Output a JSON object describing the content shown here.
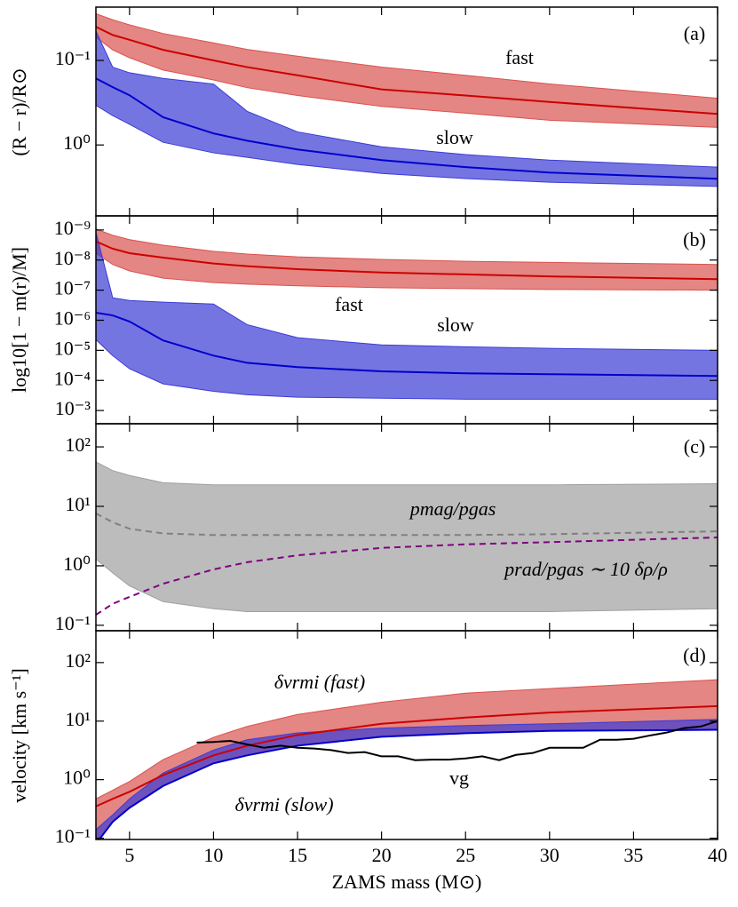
{
  "chart_data": [
    {
      "type": "line",
      "label": "(a)",
      "ylabel": "(R − r)/R⊙",
      "log_y": true,
      "xlim": [
        3,
        40
      ],
      "xticks": [
        5,
        10,
        15,
        20,
        25,
        30,
        35,
        40
      ],
      "ylim": [
        6.9,
        0.0234
      ],
      "yticks": [
        {
          "value": 0.1,
          "label": "10⁻¹"
        },
        {
          "value": 1,
          "label": "10⁰"
        }
      ],
      "x": [
        3,
        4,
        5,
        7,
        10,
        12,
        15,
        20,
        25,
        30,
        40
      ],
      "series": [
        {
          "name": "fast",
          "color": "#cc0000",
          "band_color": "#d9534f",
          "values": [
            0.04,
            0.05,
            0.057,
            0.075,
            0.1,
            0.12,
            0.15,
            0.22,
            0.26,
            0.31,
            0.43
          ],
          "lower": [
            0.028,
            0.033,
            0.038,
            0.048,
            0.062,
            0.074,
            0.089,
            0.12,
            0.15,
            0.19,
            0.28
          ],
          "upper": [
            0.053,
            0.075,
            0.093,
            0.13,
            0.17,
            0.21,
            0.26,
            0.35,
            0.42,
            0.51,
            0.62
          ]
        },
        {
          "name": "slow",
          "color": "#0000cc",
          "band_color": "#3b3bd6",
          "values": [
            0.163,
            0.207,
            0.258,
            0.47,
            0.73,
            0.89,
            1.13,
            1.51,
            1.83,
            2.12,
            2.51
          ],
          "lower": [
            0.045,
            0.12,
            0.14,
            0.163,
            0.19,
            0.4,
            0.7,
            1.05,
            1.3,
            1.51,
            1.83
          ],
          "upper": [
            0.34,
            0.45,
            0.57,
            0.93,
            1.24,
            1.4,
            1.7,
            2.17,
            2.5,
            2.76,
            3.1
          ]
        }
      ]
    },
    {
      "type": "line",
      "label": "(b)",
      "ylabel": "log10[1 − m(r)/M]",
      "log_y": true,
      "xlim": [
        3,
        40
      ],
      "xticks": [
        5,
        10,
        15,
        20,
        25,
        30,
        35,
        40
      ],
      "ylim": [
        0.00275,
        3.4e-10
      ],
      "yticks": [
        {
          "value": 1e-09,
          "label": "10⁻⁹"
        },
        {
          "value": 1e-08,
          "label": "10⁻⁸"
        },
        {
          "value": 1e-07,
          "label": "10⁻⁷"
        },
        {
          "value": 1e-06,
          "label": "10⁻⁶"
        },
        {
          "value": 1e-05,
          "label": "10⁻⁵"
        },
        {
          "value": 0.0001,
          "label": "10⁻⁴"
        },
        {
          "value": 0.001,
          "label": "10⁻³"
        }
      ],
      "x": [
        3,
        4,
        5,
        7,
        10,
        12,
        15,
        20,
        25,
        30,
        40
      ],
      "series": [
        {
          "name": "fast",
          "color": "#cc0000",
          "band_color": "#d9534f",
          "values": [
            2.4e-09,
            4.2e-09,
            5.9e-09,
            8.3e-09,
            1.3e-08,
            1.6e-08,
            2e-08,
            2.6e-08,
            3e-08,
            3.5e-08,
            4.3e-08
          ],
          "lower": [
            9.3e-10,
            1.5e-09,
            2.1e-09,
            3.2e-09,
            5.1e-09,
            6.3e-09,
            7.8e-09,
            9.5e-09,
            1.1e-08,
            1.2e-08,
            1.4e-08
          ],
          "upper": [
            5.9e-09,
            1.4e-08,
            2.3e-08,
            4e-08,
            5.6e-08,
            6.3e-08,
            7.2e-08,
            8.3e-08,
            8.9e-08,
            9.5e-08,
            1e-07
          ]
        },
        {
          "name": "slow",
          "color": "#0000cc",
          "band_color": "#3b3bd6",
          "values": [
            5.6e-07,
            6.9e-07,
            1.1e-06,
            4.7e-06,
            1.5e-05,
            2.6e-05,
            3.6e-05,
            5e-05,
            5.8e-05,
            6.2e-05,
            7.1e-05
          ],
          "lower": [
            1.2e-09,
            1.8e-07,
            2.2e-07,
            2.5e-07,
            2.9e-07,
            1.4e-06,
            3.8e-06,
            6.6e-06,
            7.6e-06,
            8.6e-06,
            1e-05
          ],
          "upper": [
            4.4e-06,
            1.5e-05,
            4.1e-05,
            0.00013,
            0.00023,
            0.0003,
            0.00036,
            0.00039,
            0.00042,
            0.00042,
            0.00042
          ]
        }
      ]
    },
    {
      "type": "line",
      "label": "(c)",
      "log_y": true,
      "xlim": [
        3,
        40
      ],
      "xticks": [
        5,
        10,
        15,
        20,
        25,
        30,
        35,
        40
      ],
      "ylim": [
        0.081,
        245
      ],
      "yticks": [
        {
          "value": 0.1,
          "label": "10⁻¹"
        },
        {
          "value": 1,
          "label": "10⁰"
        },
        {
          "value": 10,
          "label": "10¹"
        },
        {
          "value": 100,
          "label": "10²"
        }
      ],
      "x": [
        3,
        4,
        5,
        7,
        10,
        12,
        15,
        20,
        25,
        30,
        40
      ],
      "series": [
        {
          "name": "pmag/pgas",
          "color": "#808080",
          "band_color": "#a0a0a0",
          "dash": true,
          "values": [
            7.6,
            5.4,
            4.2,
            3.5,
            3.3,
            3.3,
            3.3,
            3.3,
            3.3,
            3.4,
            3.8
          ],
          "lower": [
            1.3,
            0.76,
            0.46,
            0.25,
            0.19,
            0.17,
            0.17,
            0.17,
            0.17,
            0.17,
            0.19
          ],
          "upper": [
            56,
            40,
            33,
            25,
            23,
            23,
            23,
            23,
            23,
            23,
            24
          ]
        },
        {
          "name": "prad/pgas ∼ 10 δρ/ρ",
          "color": "#800080",
          "dash": true,
          "values": [
            0.15,
            0.23,
            0.3,
            0.5,
            0.87,
            1.15,
            1.5,
            2.0,
            2.3,
            2.5,
            3.0
          ]
        }
      ]
    },
    {
      "type": "line",
      "label": "(d)",
      "ylabel": "velocity [km s⁻¹]",
      "xlabel": "ZAMS mass (M⊙)",
      "log_y": true,
      "xlim": [
        3,
        40
      ],
      "xticks": [
        5,
        10,
        15,
        20,
        25,
        30,
        35,
        40
      ],
      "ylim": [
        0.095,
        350
      ],
      "yticks": [
        {
          "value": 0.1,
          "label": "10⁻¹"
        },
        {
          "value": 1,
          "label": "10⁰"
        },
        {
          "value": 10,
          "label": "10¹"
        },
        {
          "value": 100,
          "label": "10²"
        }
      ],
      "x": [
        3,
        4,
        5,
        7,
        10,
        12,
        15,
        20,
        25,
        30,
        40
      ],
      "series": [
        {
          "name": "δvrmi (fast)",
          "color": "#cc0000",
          "band_color": "#d9534f",
          "values": [
            0.35,
            0.47,
            0.62,
            1.2,
            2.6,
            3.8,
            5.8,
            9,
            11.5,
            14,
            18
          ],
          "lower": [
            0.08,
            0.19,
            0.33,
            0.78,
            1.9,
            2.6,
            3.8,
            5.4,
            6.2,
            6.8,
            7.1
          ],
          "upper": [
            0.47,
            0.66,
            0.93,
            2.2,
            5.3,
            8.1,
            13,
            21,
            30,
            36,
            51
          ]
        },
        {
          "name": "δvrmi (slow)",
          "color": "#0000cc",
          "band_color": "#3b3bd6",
          "values": [
            0.08,
            0.19,
            0.33,
            0.78,
            1.9,
            2.6,
            3.8,
            5.4,
            6.2,
            6.8,
            7.1
          ],
          "lower": [
            0.08,
            0.19,
            0.33,
            0.78,
            1.9,
            2.6,
            3.8,
            5.4,
            6.2,
            6.8,
            7.1
          ],
          "upper": [
            0.14,
            0.25,
            0.47,
            1.3,
            3.2,
            4.8,
            6.3,
            7.6,
            8.4,
            9,
            10.7
          ]
        },
        {
          "name": "vg",
          "color": "#000000",
          "x": [
            9,
            10,
            11,
            12,
            13,
            14,
            15,
            16,
            17,
            18,
            19,
            20,
            21,
            22,
            23,
            24,
            25,
            26,
            27,
            28,
            29,
            30,
            31,
            32,
            33,
            34,
            35,
            36,
            37,
            38,
            39,
            40
          ],
          "values": [
            4.3,
            4.4,
            4.6,
            4.0,
            3.5,
            3.8,
            3.5,
            3.4,
            3.2,
            2.85,
            2.95,
            2.5,
            2.5,
            2.15,
            2.2,
            2.2,
            2.3,
            2.5,
            2.15,
            2.65,
            2.85,
            3.5,
            3.5,
            3.5,
            4.8,
            4.8,
            5.0,
            5.7,
            6.4,
            7.6,
            8.1,
            10
          ]
        }
      ]
    }
  ]
}
